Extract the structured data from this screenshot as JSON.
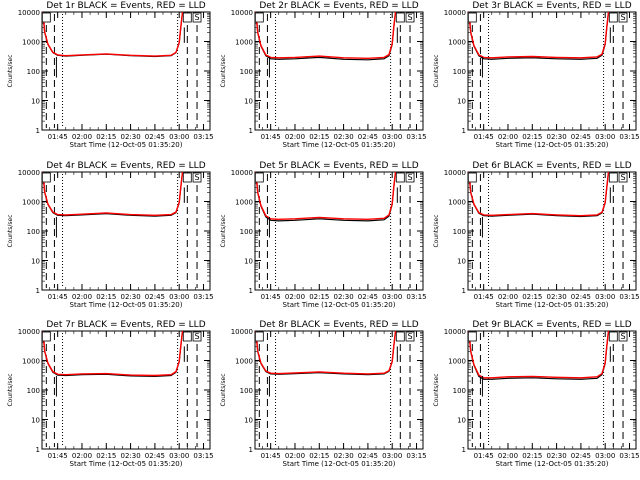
{
  "figure": {
    "xlabel": "Start Time (12-Oct-05 01:35:20)",
    "ylabel": "Counts/sec",
    "xticks": [
      "01:45",
      "02:00",
      "02:15",
      "02:30",
      "02:45",
      "03:00",
      "03:15"
    ],
    "yticks": [
      "1",
      "10",
      "100",
      "1000",
      "10000"
    ],
    "colors": {
      "events": "#000000",
      "lld": "#ff0000",
      "axes": "#000000",
      "background": "#ffffff"
    }
  },
  "chart_data": [
    {
      "type": "line",
      "title": "Det 1r BLACK = Events, RED = LLD",
      "xlabel": "Start Time (12-Oct-05 01:35:20)",
      "ylabel": "Counts/sec",
      "xlim": [
        "01:35:20",
        "03:19"
      ],
      "ylim": [
        1,
        10000
      ],
      "yscale": "log",
      "flag_label": "S",
      "x": [
        "01:35:20",
        "01:36",
        "01:37",
        "01:39",
        "01:42",
        "01:45",
        "01:50",
        "02:00",
        "02:15",
        "02:30",
        "02:45",
        "02:55",
        "02:58",
        "03:00",
        "03:01",
        "03:02"
      ],
      "series": [
        {
          "name": "Events",
          "color": "#000000",
          "values": [
            10000,
            8000,
            2000,
            800,
            420,
            340,
            320,
            340,
            370,
            330,
            310,
            330,
            420,
            900,
            3000,
            10000
          ]
        },
        {
          "name": "LLD",
          "color": "#ff0000",
          "values": [
            10000,
            8200,
            2100,
            820,
            430,
            350,
            330,
            350,
            380,
            340,
            320,
            340,
            430,
            920,
            3100,
            10000
          ]
        }
      ],
      "dashed_lines_x": [
        "01:38",
        "01:43",
        "03:05",
        "03:11"
      ],
      "dotted_lines_x": [
        "01:48",
        "02:59"
      ]
    },
    {
      "type": "line",
      "title": "Det 2r BLACK = Events, RED = LLD",
      "xlabel": "Start Time (12-Oct-05 01:35:20)",
      "ylabel": "Counts/sec",
      "xlim": [
        "01:35:20",
        "03:19"
      ],
      "ylim": [
        1,
        10000
      ],
      "yscale": "log",
      "flag_label": "S",
      "x": [
        "01:35:20",
        "01:36",
        "01:37",
        "01:39",
        "01:42",
        "01:45",
        "01:50",
        "02:00",
        "02:15",
        "02:30",
        "02:45",
        "02:55",
        "02:58",
        "03:00",
        "03:01",
        "03:02"
      ],
      "series": [
        {
          "name": "Events",
          "color": "#000000",
          "values": [
            10000,
            8000,
            2000,
            700,
            330,
            260,
            250,
            260,
            290,
            250,
            240,
            260,
            330,
            800,
            3000,
            10000
          ]
        },
        {
          "name": "LLD",
          "color": "#ff0000",
          "values": [
            10000,
            8200,
            2100,
            730,
            350,
            290,
            280,
            290,
            320,
            280,
            270,
            290,
            360,
            850,
            3100,
            10000
          ]
        }
      ],
      "dashed_lines_x": [
        "01:38",
        "01:43",
        "03:05",
        "03:11"
      ],
      "dotted_lines_x": [
        "01:48",
        "02:59"
      ]
    },
    {
      "type": "line",
      "title": "Det 3r BLACK = Events, RED = LLD",
      "xlabel": "Start Time (12-Oct-05 01:35:20)",
      "ylabel": "Counts/sec",
      "xlim": [
        "01:35:20",
        "03:19"
      ],
      "ylim": [
        1,
        10000
      ],
      "yscale": "log",
      "flag_label": "S",
      "x": [
        "01:35:20",
        "01:36",
        "01:37",
        "01:39",
        "01:42",
        "01:45",
        "01:50",
        "02:00",
        "02:15",
        "02:30",
        "02:45",
        "02:55",
        "02:58",
        "03:00",
        "03:01",
        "03:02"
      ],
      "series": [
        {
          "name": "Events",
          "color": "#000000",
          "values": [
            10000,
            8000,
            2000,
            700,
            330,
            260,
            250,
            270,
            280,
            260,
            250,
            270,
            340,
            800,
            3000,
            10000
          ]
        },
        {
          "name": "LLD",
          "color": "#ff0000",
          "values": [
            10000,
            8200,
            2100,
            740,
            350,
            290,
            280,
            300,
            310,
            290,
            280,
            300,
            370,
            850,
            3100,
            10000
          ]
        }
      ],
      "dashed_lines_x": [
        "01:38",
        "01:43",
        "03:05",
        "03:11"
      ],
      "dotted_lines_x": [
        "01:48",
        "02:59"
      ]
    },
    {
      "type": "line",
      "title": "Det 4r BLACK = Events, RED = LLD",
      "xlabel": "Start Time (12-Oct-05 01:35:20)",
      "ylabel": "Counts/sec",
      "xlim": [
        "01:35:20",
        "03:19"
      ],
      "ylim": [
        1,
        10000
      ],
      "yscale": "log",
      "flag_label": "S",
      "x": [
        "01:35:20",
        "01:36",
        "01:37",
        "01:39",
        "01:42",
        "01:45",
        "01:50",
        "02:00",
        "02:15",
        "02:30",
        "02:45",
        "02:55",
        "02:58",
        "03:00",
        "03:01",
        "03:02"
      ],
      "series": [
        {
          "name": "Events",
          "color": "#000000",
          "values": [
            10000,
            8000,
            2000,
            800,
            420,
            340,
            330,
            350,
            390,
            340,
            320,
            340,
            420,
            900,
            3000,
            10000
          ]
        },
        {
          "name": "LLD",
          "color": "#ff0000",
          "values": [
            10000,
            8200,
            2100,
            820,
            440,
            360,
            350,
            370,
            410,
            360,
            340,
            360,
            440,
            930,
            3100,
            10000
          ]
        }
      ],
      "dashed_lines_x": [
        "01:38",
        "01:43",
        "03:05",
        "03:11"
      ],
      "dotted_lines_x": [
        "01:48",
        "02:59"
      ]
    },
    {
      "type": "line",
      "title": "Det 5r BLACK = Events, RED = LLD",
      "xlabel": "Start Time (12-Oct-05 01:35:20)",
      "ylabel": "Counts/sec",
      "xlim": [
        "01:35:20",
        "03:19"
      ],
      "ylim": [
        1,
        10000
      ],
      "yscale": "log",
      "flag_label": "S",
      "x": [
        "01:35:20",
        "01:36",
        "01:37",
        "01:39",
        "01:42",
        "01:45",
        "01:50",
        "02:00",
        "02:15",
        "02:30",
        "02:45",
        "02:55",
        "02:58",
        "03:00",
        "03:01",
        "03:02"
      ],
      "series": [
        {
          "name": "Events",
          "color": "#000000",
          "values": [
            10000,
            8000,
            2000,
            700,
            300,
            230,
            220,
            230,
            260,
            230,
            220,
            240,
            320,
            800,
            3000,
            10000
          ]
        },
        {
          "name": "LLD",
          "color": "#ff0000",
          "values": [
            10000,
            8200,
            2100,
            740,
            330,
            260,
            250,
            260,
            290,
            260,
            250,
            270,
            350,
            850,
            3100,
            10000
          ]
        }
      ],
      "dashed_lines_x": [
        "01:38",
        "01:43",
        "03:05",
        "03:11"
      ],
      "dotted_lines_x": [
        "01:48",
        "02:59"
      ]
    },
    {
      "type": "line",
      "title": "Det 6r BLACK = Events, RED = LLD",
      "xlabel": "Start Time (12-Oct-05 01:35:20)",
      "ylabel": "Counts/sec",
      "xlim": [
        "01:35:20",
        "03:19"
      ],
      "ylim": [
        1,
        10000
      ],
      "yscale": "log",
      "flag_label": "S",
      "x": [
        "01:35:20",
        "01:36",
        "01:37",
        "01:39",
        "01:42",
        "01:45",
        "01:50",
        "02:00",
        "02:15",
        "02:30",
        "02:45",
        "02:55",
        "02:58",
        "03:00",
        "03:01",
        "03:02"
      ],
      "series": [
        {
          "name": "Events",
          "color": "#000000",
          "values": [
            10000,
            8000,
            2000,
            800,
            400,
            330,
            320,
            340,
            370,
            330,
            310,
            330,
            410,
            900,
            3000,
            10000
          ]
        },
        {
          "name": "LLD",
          "color": "#ff0000",
          "values": [
            10000,
            8200,
            2100,
            820,
            420,
            350,
            340,
            360,
            390,
            350,
            330,
            350,
            430,
            930,
            3100,
            10000
          ]
        }
      ],
      "dashed_lines_x": [
        "01:38",
        "01:43",
        "03:05",
        "03:11"
      ],
      "dotted_lines_x": [
        "01:48",
        "02:59"
      ]
    },
    {
      "type": "line",
      "title": "Det 7r BLACK = Events, RED = LLD",
      "xlabel": "Start Time (12-Oct-05 01:35:20)",
      "ylabel": "Counts/sec",
      "xlim": [
        "01:35:20",
        "03:19"
      ],
      "ylim": [
        1,
        10000
      ],
      "yscale": "log",
      "flag_label": "S",
      "x": [
        "01:35:20",
        "01:36",
        "01:37",
        "01:39",
        "01:42",
        "01:45",
        "01:50",
        "02:00",
        "02:15",
        "02:30",
        "02:45",
        "02:55",
        "02:58",
        "03:00",
        "03:01",
        "03:02"
      ],
      "series": [
        {
          "name": "Events",
          "color": "#000000",
          "values": [
            10000,
            8000,
            2000,
            800,
            400,
            320,
            310,
            330,
            340,
            300,
            290,
            310,
            400,
            900,
            3000,
            10000
          ]
        },
        {
          "name": "LLD",
          "color": "#ff0000",
          "values": [
            10000,
            8200,
            2100,
            820,
            420,
            340,
            330,
            350,
            360,
            320,
            310,
            330,
            420,
            930,
            3100,
            10000
          ]
        }
      ],
      "dashed_lines_x": [
        "01:38",
        "01:43",
        "03:05",
        "03:11"
      ],
      "dotted_lines_x": [
        "01:48",
        "02:59"
      ]
    },
    {
      "type": "line",
      "title": "Det 8r BLACK = Events, RED = LLD",
      "xlabel": "Start Time (12-Oct-05 01:35:20)",
      "ylabel": "Counts/sec",
      "xlim": [
        "01:35:20",
        "03:19"
      ],
      "ylim": [
        1,
        10000
      ],
      "yscale": "log",
      "flag_label": "S",
      "x": [
        "01:35:20",
        "01:36",
        "01:37",
        "01:39",
        "01:42",
        "01:45",
        "01:50",
        "02:00",
        "02:15",
        "02:30",
        "02:45",
        "02:55",
        "02:58",
        "03:00",
        "03:01",
        "03:02"
      ],
      "series": [
        {
          "name": "Events",
          "color": "#000000",
          "values": [
            10000,
            8000,
            2000,
            800,
            420,
            350,
            340,
            360,
            390,
            350,
            330,
            350,
            430,
            900,
            3000,
            10000
          ]
        },
        {
          "name": "LLD",
          "color": "#ff0000",
          "values": [
            10000,
            8200,
            2100,
            820,
            440,
            370,
            360,
            380,
            410,
            370,
            350,
            370,
            450,
            930,
            3100,
            10000
          ]
        }
      ],
      "dashed_lines_x": [
        "01:38",
        "01:43",
        "03:05",
        "03:11"
      ],
      "dotted_lines_x": [
        "01:48",
        "02:59"
      ]
    },
    {
      "type": "line",
      "title": "Det 9r BLACK = Events, RED = LLD",
      "xlabel": "Start Time (12-Oct-05 01:35:20)",
      "ylabel": "Counts/sec",
      "xlim": [
        "01:35:20",
        "03:19"
      ],
      "ylim": [
        1,
        10000
      ],
      "yscale": "log",
      "flag_label": "S",
      "x": [
        "01:35:20",
        "01:36",
        "01:37",
        "01:39",
        "01:42",
        "01:45",
        "01:50",
        "02:00",
        "02:15",
        "02:30",
        "02:45",
        "02:55",
        "02:58",
        "03:00",
        "03:01",
        "03:02"
      ],
      "series": [
        {
          "name": "Events",
          "color": "#000000",
          "values": [
            10000,
            8000,
            2000,
            700,
            290,
            230,
            230,
            250,
            260,
            240,
            230,
            250,
            330,
            800,
            3000,
            10000
          ]
        },
        {
          "name": "LLD",
          "color": "#ff0000",
          "values": [
            10000,
            8200,
            2100,
            730,
            320,
            260,
            260,
            280,
            290,
            270,
            260,
            280,
            360,
            850,
            3100,
            10000
          ]
        }
      ],
      "dashed_lines_x": [
        "01:38",
        "01:43",
        "03:05",
        "03:11"
      ],
      "dotted_lines_x": [
        "01:48",
        "02:59"
      ]
    }
  ]
}
